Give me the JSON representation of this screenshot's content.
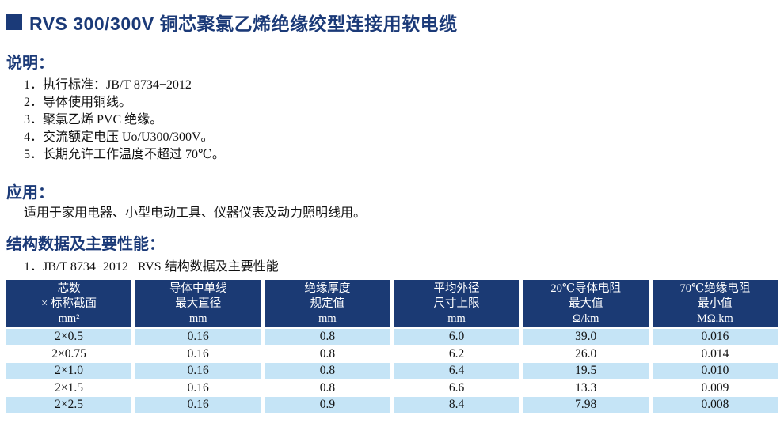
{
  "page": {
    "title": "RVS 300/300V 铜芯聚氯乙烯绝缘绞型连接用软电缆"
  },
  "notes": {
    "heading": "说明：",
    "items": [
      "1．执行标准：JB/T 8734−2012",
      "2．导体使用铜线。",
      "3．聚氯乙烯 PVC 绝缘。",
      "4．交流额定电压 Uo/U300/300V。",
      "5．长期允许工作温度不超过 70℃。"
    ]
  },
  "application": {
    "heading": "应用：",
    "text": "适用于家用电器、小型电动工具、仪器仪表及动力照明线用。"
  },
  "performance": {
    "heading": "结构数据及主要性能：",
    "caption": "1．JB/T 8734−2012   RVS 结构数据及主要性能"
  },
  "table": {
    "columns": [
      "芯数\n× 标称截面\nmm²",
      "导体中单线\n最大直径\nmm",
      "绝缘厚度\n规定值\nmm",
      "平均外径\n尺寸上限\nmm",
      "20℃导体电阻\n最大值\nΩ/km",
      "70℃绝缘电阻\n最小值\nMΩ.km"
    ],
    "rows": [
      [
        "2×0.5",
        "0.16",
        "0.8",
        "6.0",
        "39.0",
        "0.016"
      ],
      [
        "2×0.75",
        "0.16",
        "0.8",
        "6.2",
        "26.0",
        "0.014"
      ],
      [
        "2×1.0",
        "0.16",
        "0.8",
        "6.4",
        "19.5",
        "0.010"
      ],
      [
        "2×1.5",
        "0.16",
        "0.8",
        "6.6",
        "13.3",
        "0.009"
      ],
      [
        "2×2.5",
        "0.16",
        "0.9",
        "8.4",
        "7.98",
        "0.008"
      ]
    ]
  },
  "colors": {
    "navy": "#1b3a78",
    "table_header_bg": "#1b3a74",
    "row_alt_bg": "#c5e4f6"
  }
}
